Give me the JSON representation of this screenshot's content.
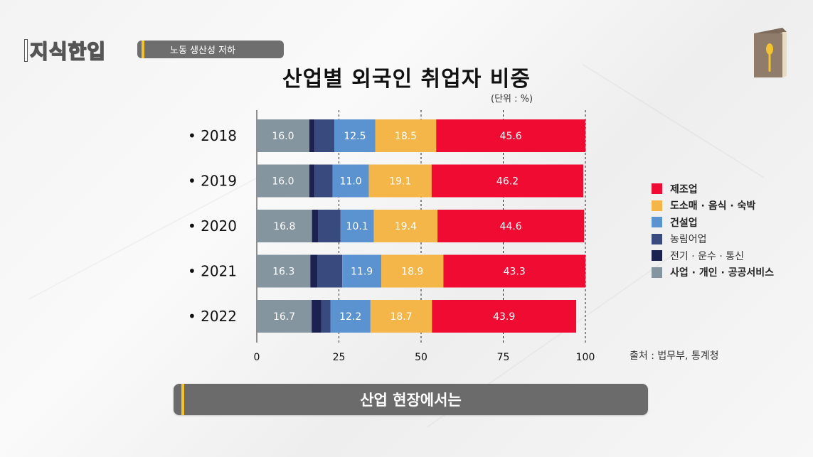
{
  "header": {
    "logo_text": "지식한입",
    "topic_pill": "노동 생산성 저하"
  },
  "chart_data": {
    "type": "bar",
    "orientation": "horizontal",
    "stacked": true,
    "title": "산업별 외국인 취업자 비중",
    "unit_note": "(단위 : %)",
    "categories": [
      "2018",
      "2019",
      "2020",
      "2021",
      "2022"
    ],
    "category_bullet": "•",
    "xlim": [
      0,
      100
    ],
    "xticks": [
      0,
      25,
      50,
      75,
      100
    ],
    "grid": "vertical dashed",
    "legend_position": "right",
    "series": [
      {
        "name": "사업 · 개인 · 공공서비스",
        "color": "#85959f",
        "values": [
          16.0,
          16.0,
          16.8,
          16.3,
          16.7
        ],
        "labeled": true
      },
      {
        "name": "전기 · 운수 · 통신",
        "color": "#1b2150",
        "values": [
          1.6,
          1.6,
          1.9,
          2.1,
          2.9
        ],
        "labeled": false
      },
      {
        "name": "농림어업",
        "color": "#394a7e",
        "values": [
          6.0,
          5.5,
          6.8,
          7.6,
          2.8
        ],
        "labeled": false
      },
      {
        "name": "건설업",
        "color": "#5b93d1",
        "values": [
          12.5,
          11.0,
          10.1,
          11.9,
          12.2
        ],
        "labeled": true
      },
      {
        "name": "도소매 · 음식 · 숙박",
        "color": "#f5b649",
        "values": [
          18.5,
          19.1,
          19.4,
          18.9,
          18.7
        ],
        "labeled": true
      },
      {
        "name": "제조업",
        "color": "#ef0b32",
        "values": [
          45.6,
          46.2,
          44.6,
          43.3,
          43.9
        ],
        "labeled": true
      }
    ],
    "legend_order": [
      "제조업",
      "도소매 · 음식 · 숙박",
      "건설업",
      "농림어업",
      "전기 · 운수 · 통신",
      "사업 · 개인 · 공공서비스"
    ],
    "legend_bold": [
      "제조업",
      "도소매 · 음식 · 숙박",
      "건설업",
      "사업 · 개인 · 공공서비스"
    ],
    "source": "출처 : 법무부, 통계청"
  },
  "banner": {
    "text": "산업 현장에서는"
  },
  "colors": {
    "pill_bg": "#6e6e6e",
    "accent": "#f2c230",
    "banner_bg": "#6b6b6b"
  }
}
